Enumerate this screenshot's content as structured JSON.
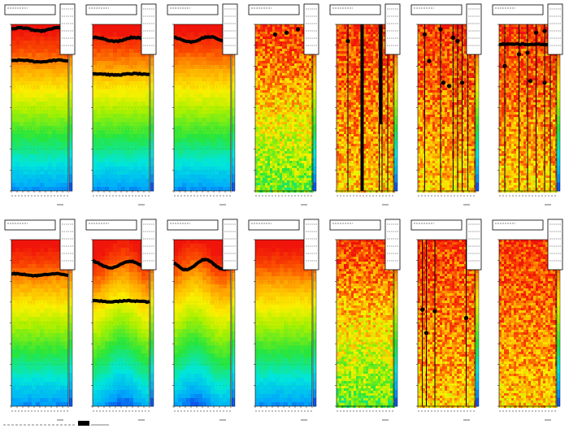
{
  "chart_data": [
    {
      "type": "heatmap",
      "pattern": "smooth",
      "band_level": 0.72,
      "lines": [
        {
          "level": 0.97,
          "wave": 0.01
        },
        {
          "level": 0.78,
          "wave": 0.005
        }
      ],
      "vlines": [],
      "dots": []
    },
    {
      "type": "heatmap",
      "pattern": "smooth",
      "band_level": 0.72,
      "lines": [
        {
          "level": 0.91,
          "wave": 0.012
        },
        {
          "level": 0.7,
          "wave": 0.004
        }
      ],
      "vlines": [],
      "dots": []
    },
    {
      "type": "heatmap",
      "pattern": "smooth",
      "band_level": 0.68,
      "lines": [
        {
          "level": 0.91,
          "wave": 0.015
        }
      ],
      "vlines": [],
      "dots": []
    },
    {
      "type": "heatmap",
      "pattern": "grainy",
      "band_level": 0.85,
      "lines": [],
      "vlines": [],
      "dots": [
        {
          "x": 0.35,
          "y": 0.94
        },
        {
          "x": 0.55,
          "y": 0.95
        },
        {
          "x": 0.75,
          "y": 0.97
        }
      ]
    },
    {
      "type": "heatmap",
      "pattern": "grainy-hot",
      "band_level": 0.85,
      "lines": [],
      "vlines": [
        0.2,
        0.45,
        0.75,
        0.8,
        0.9
      ],
      "dots": [
        {
          "x": 0.2,
          "y": 0.9
        }
      ]
    },
    {
      "type": "heatmap",
      "pattern": "grainy-hot",
      "band_level": 0.85,
      "lines": [],
      "vlines": [
        0.12,
        0.4,
        0.62,
        0.7,
        0.78,
        0.88
      ],
      "dots": [
        {
          "x": 0.12,
          "y": 0.94
        },
        {
          "x": 0.4,
          "y": 0.97
        },
        {
          "x": 0.62,
          "y": 0.92
        },
        {
          "x": 0.2,
          "y": 0.78
        },
        {
          "x": 0.45,
          "y": 0.65
        },
        {
          "x": 0.55,
          "y": 0.63
        },
        {
          "x": 0.7,
          "y": 0.9
        },
        {
          "x": 0.78,
          "y": 0.65
        }
      ]
    },
    {
      "type": "heatmap",
      "pattern": "grainy-hot",
      "band_level": 0.85,
      "lines": [
        {
          "level": 0.88,
          "wave": 0
        }
      ],
      "vlines": [
        0.1,
        0.35,
        0.5,
        0.65,
        0.8,
        0.9
      ],
      "dots": [
        {
          "x": 0.1,
          "y": 0.75
        },
        {
          "x": 0.35,
          "y": 0.82
        },
        {
          "x": 0.5,
          "y": 0.83
        },
        {
          "x": 0.55,
          "y": 0.66
        },
        {
          "x": 0.65,
          "y": 0.95
        },
        {
          "x": 0.8,
          "y": 0.96
        },
        {
          "x": 0.8,
          "y": 0.65
        }
      ]
    },
    {
      "type": "heatmap",
      "pattern": "smooth",
      "band_level": 0.8,
      "lines": [
        {
          "level": 0.79,
          "wave": 0.006
        }
      ],
      "vlines": [],
      "dots": []
    },
    {
      "type": "heatmap",
      "pattern": "smooth-wave",
      "band_level": 0.78,
      "lines": [
        {
          "level": 0.85,
          "wave": 0.02
        },
        {
          "level": 0.63,
          "wave": 0.003
        }
      ],
      "vlines": [],
      "dots": []
    },
    {
      "type": "heatmap",
      "pattern": "smooth-wave",
      "band_level": 0.78,
      "lines": [
        {
          "level": 0.85,
          "wave": 0.03
        }
      ],
      "vlines": [],
      "dots": []
    },
    {
      "type": "heatmap",
      "pattern": "smooth",
      "band_level": 0.85,
      "lines": [],
      "vlines": [],
      "dots": []
    },
    {
      "type": "heatmap",
      "pattern": "grainy",
      "band_level": 0.7,
      "lines": [],
      "vlines": [],
      "dots": []
    },
    {
      "type": "heatmap",
      "pattern": "grainy-hot",
      "band_level": 0.85,
      "lines": [],
      "vlines": [
        0.08,
        0.15,
        0.3,
        0.85
      ],
      "dots": [
        {
          "x": 0.08,
          "y": 0.58
        },
        {
          "x": 0.3,
          "y": 0.57
        },
        {
          "x": 0.15,
          "y": 0.44
        },
        {
          "x": 0.85,
          "y": 0.53
        }
      ]
    },
    {
      "type": "heatmap",
      "pattern": "grainy-hot",
      "band_level": 0.85,
      "lines": [],
      "vlines": [],
      "dots": []
    }
  ],
  "colors": {
    "frame": "#000000",
    "background": "#ffffff",
    "line": "#000000"
  }
}
